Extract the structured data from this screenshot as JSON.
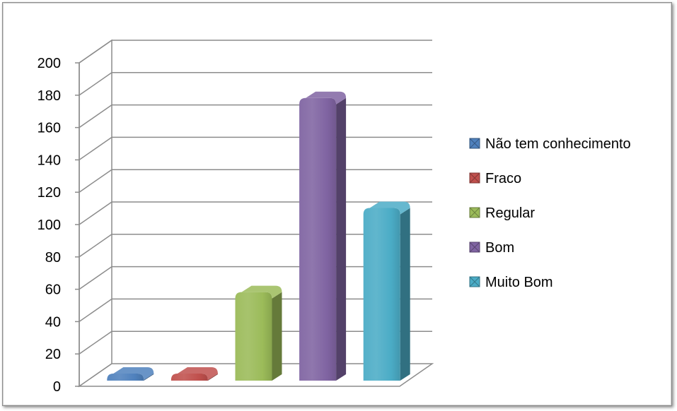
{
  "chart_data": {
    "type": "bar",
    "style": "3d-cylinder",
    "categories": [
      "Não tem conhecimento",
      "Fraco",
      "Regular",
      "Bom",
      "Muito Bom"
    ],
    "values": [
      5,
      5,
      60,
      180,
      112
    ],
    "colors": [
      "#4f81bd",
      "#c0504d",
      "#9bbb59",
      "#8064a2",
      "#4bacc6"
    ],
    "ylim": [
      0,
      200
    ],
    "yticks": [
      "0",
      "20",
      "40",
      "60",
      "80",
      "100",
      "120",
      "140",
      "160",
      "180",
      "200"
    ],
    "grid": true,
    "legend": "right",
    "title": "",
    "xlabel": "",
    "ylabel": ""
  }
}
